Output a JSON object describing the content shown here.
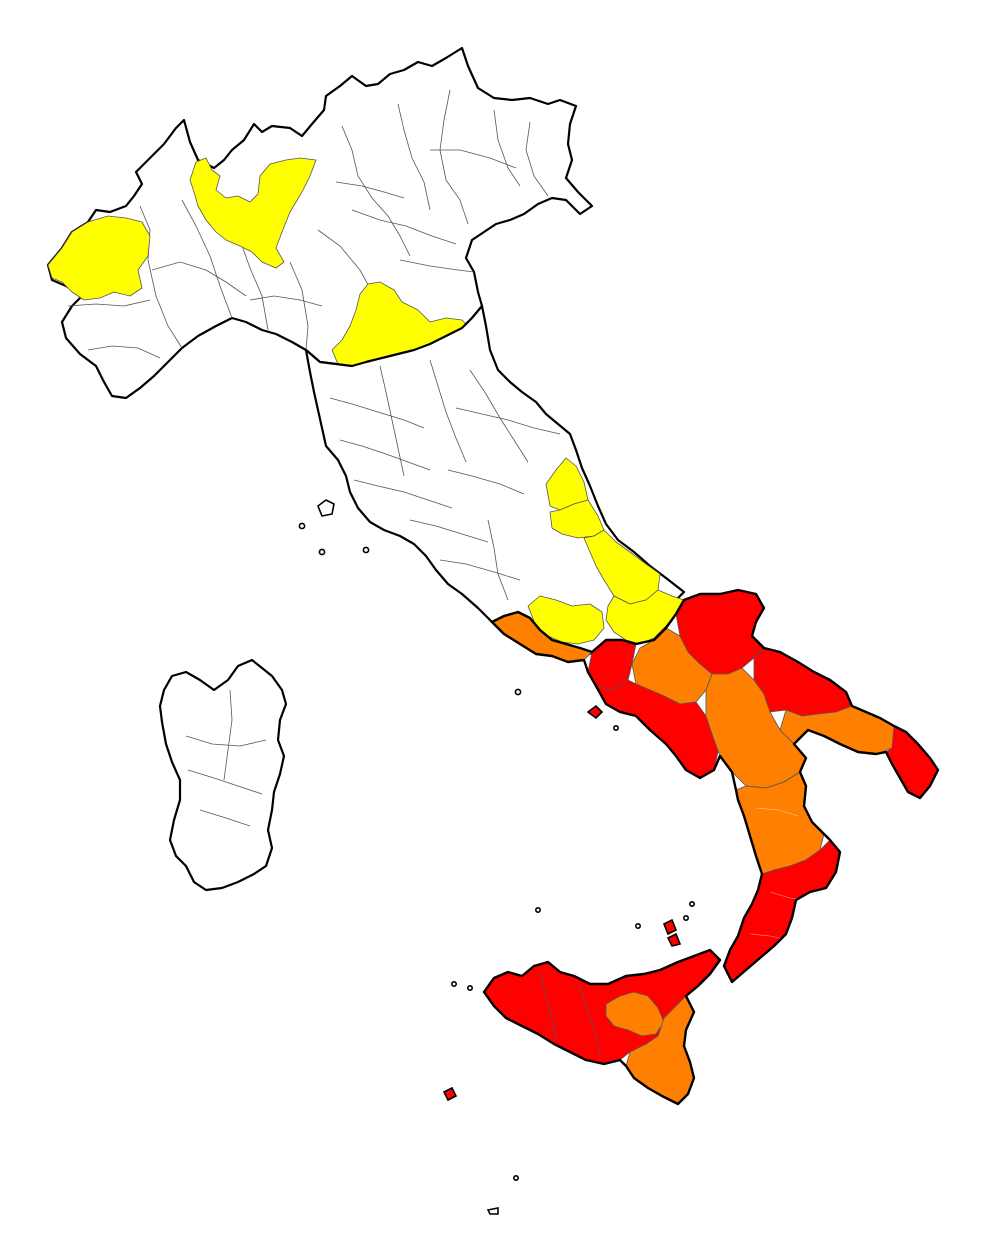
{
  "map": {
    "kind": "choropleth",
    "country": "Italy",
    "unit": "province",
    "legend": null,
    "classes": {
      "none": "#ffffff",
      "low": "#ffff00",
      "medium": "#ff7f00",
      "high": "#ff0000"
    },
    "colors": {
      "border": "#000000",
      "province_border": "#555555",
      "background": "#ffffff"
    }
  }
}
